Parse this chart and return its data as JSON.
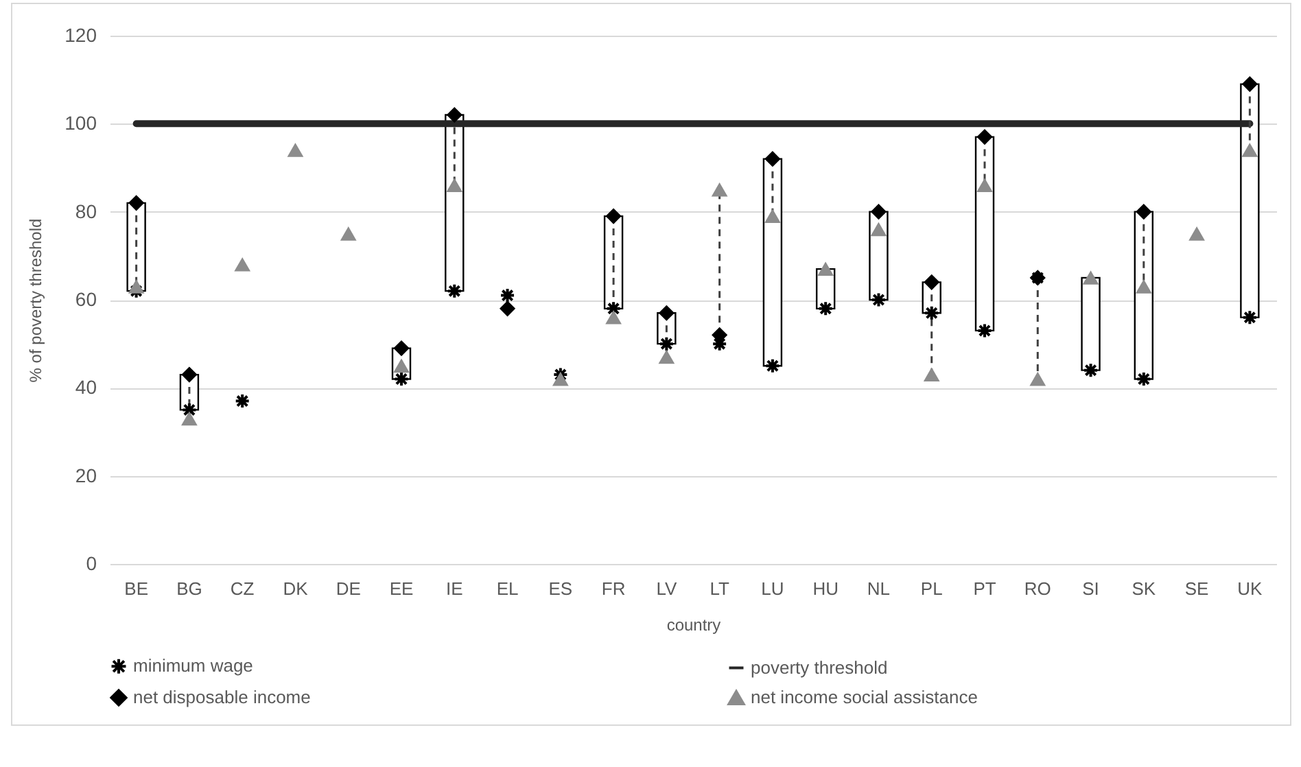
{
  "chart_data": {
    "type": "scatter",
    "xlabel": "country",
    "ylabel": "% of poverty threshold",
    "categories": [
      "BE",
      "BG",
      "CZ",
      "DK",
      "DE",
      "EE",
      "IE",
      "EL",
      "ES",
      "FR",
      "LV",
      "LT",
      "LU",
      "HU",
      "NL",
      "PL",
      "PT",
      "RO",
      "SI",
      "SK",
      "SE",
      "UK"
    ],
    "ylim": [
      0,
      120
    ],
    "yticks": [
      0,
      20,
      40,
      60,
      80,
      100,
      120
    ],
    "grid": "y",
    "legend": "bottom",
    "series": [
      {
        "name": "minimum wage",
        "marker": "cross",
        "color": "#000000",
        "values": [
          62,
          35,
          37,
          null,
          null,
          42,
          62,
          61,
          43,
          58,
          50,
          50,
          45,
          58,
          60,
          57,
          53,
          65,
          44,
          42,
          null,
          56
        ]
      },
      {
        "name": "poverty threshold",
        "type": "line",
        "color": "#262626",
        "values": [
          100,
          100,
          100,
          100,
          100,
          100,
          100,
          100,
          100,
          100,
          100,
          100,
          100,
          100,
          100,
          100,
          100,
          100,
          100,
          100,
          100,
          100
        ]
      },
      {
        "name": "net disposable income",
        "marker": "diamond",
        "color": "#000000",
        "values": [
          82,
          43,
          null,
          null,
          null,
          49,
          102,
          58,
          null,
          79,
          57,
          52,
          92,
          null,
          80,
          64,
          97,
          65,
          null,
          80,
          null,
          109
        ]
      },
      {
        "name": "net income social assistance",
        "marker": "triangle",
        "color": "#8c8c8c",
        "values": [
          63,
          33,
          68,
          94,
          75,
          45,
          86,
          null,
          42,
          56,
          47,
          85,
          79,
          67,
          76,
          43,
          86,
          42,
          65,
          63,
          75,
          94
        ]
      },
      {
        "type": "bar",
        "color": "#ffffff",
        "base": [
          62,
          35,
          null,
          null,
          null,
          42,
          62,
          null,
          null,
          58,
          50,
          null,
          45,
          58,
          60,
          57,
          53,
          null,
          44,
          42,
          null,
          56
        ],
        "values": [
          20,
          8,
          null,
          null,
          null,
          7,
          40,
          null,
          null,
          21,
          7,
          null,
          47,
          9,
          20,
          7,
          44,
          null,
          21,
          38,
          null,
          53
        ]
      }
    ]
  }
}
